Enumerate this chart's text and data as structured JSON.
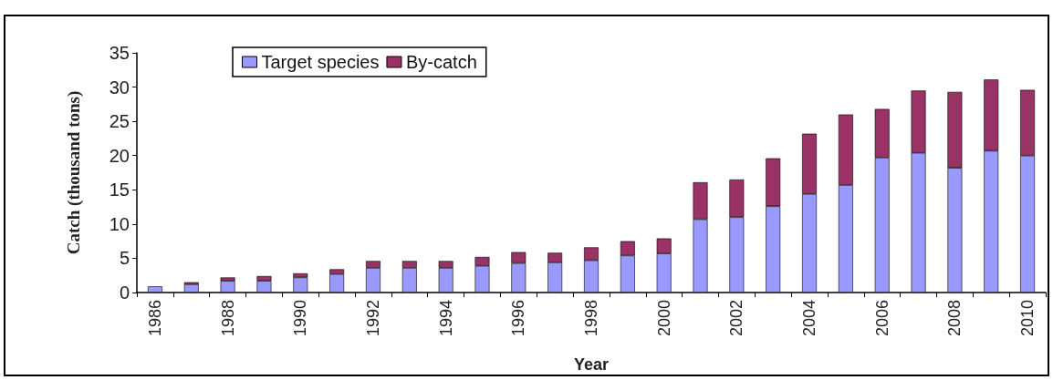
{
  "chart_data": {
    "type": "bar",
    "stacked": true,
    "xlabel": "Year",
    "ylabel": "Catch (thousand tons)",
    "categories": [
      "1986",
      null,
      "1988",
      null,
      "1990",
      null,
      "1992",
      null,
      "1994",
      null,
      "1996",
      null,
      "1998",
      null,
      "2000",
      null,
      "2002",
      null,
      "2004",
      null,
      "2006",
      null,
      "2008",
      null,
      "2010"
    ],
    "series": [
      {
        "name": "Target species",
        "color": "#9999ff",
        "values": [
          0.9,
          1.2,
          1.7,
          1.7,
          2.2,
          2.7,
          3.6,
          3.6,
          3.6,
          3.9,
          4.3,
          4.4,
          4.7,
          5.4,
          5.7,
          10.7,
          11.0,
          12.6,
          14.4,
          15.7,
          19.7,
          20.4,
          18.2,
          20.7,
          20.0
        ]
      },
      {
        "name": "By-catch",
        "color": "#993366",
        "values": [
          null,
          0.3,
          0.5,
          0.7,
          0.6,
          0.7,
          1.0,
          1.0,
          1.0,
          1.3,
          1.6,
          1.4,
          1.9,
          2.1,
          2.2,
          5.4,
          5.5,
          7.0,
          8.8,
          10.3,
          7.1,
          9.1,
          11.1,
          10.4,
          9.6
        ]
      }
    ],
    "ylim": [
      0,
      35
    ],
    "yticks": [
      0,
      5,
      10,
      15,
      20,
      25,
      30,
      35
    ],
    "grid": false,
    "legend": "top left"
  }
}
